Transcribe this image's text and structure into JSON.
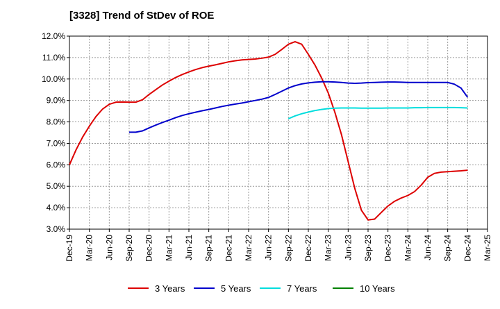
{
  "chart_data": {
    "type": "line",
    "title": "[3328]  Trend of StDev of ROE",
    "xlabel": "",
    "ylabel": "",
    "ylim": [
      3.0,
      12.0
    ],
    "y_ticks": [
      3.0,
      4.0,
      5.0,
      6.0,
      7.0,
      8.0,
      9.0,
      10.0,
      11.0,
      12.0
    ],
    "y_tick_labels": [
      "3.0%",
      "4.0%",
      "5.0%",
      "6.0%",
      "7.0%",
      "8.0%",
      "9.0%",
      "10.0%",
      "11.0%",
      "12.0%"
    ],
    "x_tick_labels": [
      "Dec-19",
      "Mar-20",
      "Jun-20",
      "Sep-20",
      "Dec-20",
      "Mar-21",
      "Jun-21",
      "Sep-21",
      "Dec-21",
      "Mar-22",
      "Jun-22",
      "Sep-22",
      "Dec-22",
      "Mar-23",
      "Jun-23",
      "Sep-23",
      "Dec-23",
      "Mar-24",
      "Jun-24",
      "Sep-24",
      "Dec-24",
      "Mar-25"
    ],
    "grid": true,
    "legend_position": "bottom",
    "series": [
      {
        "name": "3 Years",
        "color": "#dd0000",
        "points": [
          [
            "Dec-19",
            6.0
          ],
          [
            "Jan-20",
            6.7
          ],
          [
            "Feb-20",
            7.3
          ],
          [
            "Mar-20",
            7.8
          ],
          [
            "Apr-20",
            8.25
          ],
          [
            "May-20",
            8.6
          ],
          [
            "Jun-20",
            8.82
          ],
          [
            "Jul-20",
            8.92
          ],
          [
            "Aug-20",
            8.93
          ],
          [
            "Sep-20",
            8.92
          ],
          [
            "Oct-20",
            8.92
          ],
          [
            "Nov-20",
            9.03
          ],
          [
            "Dec-20",
            9.28
          ],
          [
            "Jan-21",
            9.5
          ],
          [
            "Feb-21",
            9.72
          ],
          [
            "Mar-21",
            9.9
          ],
          [
            "Apr-21",
            10.07
          ],
          [
            "May-21",
            10.21
          ],
          [
            "Jun-21",
            10.33
          ],
          [
            "Jul-21",
            10.44
          ],
          [
            "Aug-21",
            10.53
          ],
          [
            "Sep-21",
            10.6
          ],
          [
            "Oct-21",
            10.66
          ],
          [
            "Nov-21",
            10.73
          ],
          [
            "Dec-21",
            10.8
          ],
          [
            "Jan-22",
            10.85
          ],
          [
            "Feb-22",
            10.89
          ],
          [
            "Mar-22",
            10.91
          ],
          [
            "Apr-22",
            10.93
          ],
          [
            "May-22",
            10.97
          ],
          [
            "Jun-22",
            11.02
          ],
          [
            "Jul-22",
            11.15
          ],
          [
            "Aug-22",
            11.38
          ],
          [
            "Sep-22",
            11.62
          ],
          [
            "Oct-22",
            11.74
          ],
          [
            "Nov-22",
            11.62
          ],
          [
            "Dec-22",
            11.15
          ],
          [
            "Jan-23",
            10.65
          ],
          [
            "Feb-23",
            10.05
          ],
          [
            "Mar-23",
            9.35
          ],
          [
            "Apr-23",
            8.45
          ],
          [
            "May-23",
            7.4
          ],
          [
            "Jun-23",
            6.15
          ],
          [
            "Jul-23",
            4.9
          ],
          [
            "Aug-23",
            3.88
          ],
          [
            "Sep-23",
            3.43
          ],
          [
            "Oct-23",
            3.47
          ],
          [
            "Nov-23",
            3.78
          ],
          [
            "Dec-23",
            4.08
          ],
          [
            "Jan-24",
            4.3
          ],
          [
            "Feb-24",
            4.45
          ],
          [
            "Mar-24",
            4.57
          ],
          [
            "Apr-24",
            4.75
          ],
          [
            "May-24",
            5.05
          ],
          [
            "Jun-24",
            5.42
          ],
          [
            "Jul-24",
            5.6
          ],
          [
            "Aug-24",
            5.66
          ],
          [
            "Sep-24",
            5.68
          ],
          [
            "Oct-24",
            5.7
          ],
          [
            "Nov-24",
            5.72
          ],
          [
            "Dec-24",
            5.75
          ]
        ]
      },
      {
        "name": "5 Years",
        "color": "#0000cc",
        "points": [
          [
            "Sep-20",
            7.52
          ],
          [
            "Oct-20",
            7.52
          ],
          [
            "Nov-20",
            7.58
          ],
          [
            "Dec-20",
            7.72
          ],
          [
            "Jan-21",
            7.85
          ],
          [
            "Feb-21",
            7.97
          ],
          [
            "Mar-21",
            8.08
          ],
          [
            "Apr-21",
            8.2
          ],
          [
            "May-21",
            8.3
          ],
          [
            "Jun-21",
            8.38
          ],
          [
            "Jul-21",
            8.45
          ],
          [
            "Aug-21",
            8.52
          ],
          [
            "Sep-21",
            8.58
          ],
          [
            "Oct-21",
            8.65
          ],
          [
            "Nov-21",
            8.72
          ],
          [
            "Dec-21",
            8.78
          ],
          [
            "Jan-22",
            8.83
          ],
          [
            "Feb-22",
            8.88
          ],
          [
            "Mar-22",
            8.94
          ],
          [
            "Apr-22",
            9.0
          ],
          [
            "May-22",
            9.06
          ],
          [
            "Jun-22",
            9.14
          ],
          [
            "Jul-22",
            9.28
          ],
          [
            "Aug-22",
            9.43
          ],
          [
            "Sep-22",
            9.58
          ],
          [
            "Oct-22",
            9.69
          ],
          [
            "Nov-22",
            9.77
          ],
          [
            "Dec-22",
            9.82
          ],
          [
            "Jan-23",
            9.85
          ],
          [
            "Feb-23",
            9.87
          ],
          [
            "Mar-23",
            9.87
          ],
          [
            "Apr-23",
            9.86
          ],
          [
            "May-23",
            9.84
          ],
          [
            "Jun-23",
            9.81
          ],
          [
            "Jul-23",
            9.8
          ],
          [
            "Aug-23",
            9.81
          ],
          [
            "Sep-23",
            9.83
          ],
          [
            "Oct-23",
            9.84
          ],
          [
            "Nov-23",
            9.85
          ],
          [
            "Dec-23",
            9.86
          ],
          [
            "Jan-24",
            9.86
          ],
          [
            "Feb-24",
            9.85
          ],
          [
            "Mar-24",
            9.84
          ],
          [
            "Apr-24",
            9.84
          ],
          [
            "May-24",
            9.84
          ],
          [
            "Jun-24",
            9.84
          ],
          [
            "Jul-24",
            9.84
          ],
          [
            "Aug-24",
            9.84
          ],
          [
            "Sep-24",
            9.84
          ],
          [
            "Oct-24",
            9.76
          ],
          [
            "Nov-24",
            9.58
          ],
          [
            "Dec-24",
            9.15
          ]
        ]
      },
      {
        "name": "7 Years",
        "color": "#00dddd",
        "points": [
          [
            "Sep-22",
            8.15
          ],
          [
            "Oct-22",
            8.28
          ],
          [
            "Nov-22",
            8.38
          ],
          [
            "Dec-22",
            8.46
          ],
          [
            "Jan-23",
            8.53
          ],
          [
            "Feb-23",
            8.58
          ],
          [
            "Mar-23",
            8.62
          ],
          [
            "Apr-23",
            8.64
          ],
          [
            "May-23",
            8.65
          ],
          [
            "Jun-23",
            8.65
          ],
          [
            "Jul-23",
            8.65
          ],
          [
            "Aug-23",
            8.64
          ],
          [
            "Sep-23",
            8.64
          ],
          [
            "Oct-23",
            8.64
          ],
          [
            "Nov-23",
            8.64
          ],
          [
            "Dec-23",
            8.65
          ],
          [
            "Jan-24",
            8.65
          ],
          [
            "Feb-24",
            8.65
          ],
          [
            "Mar-24",
            8.65
          ],
          [
            "Apr-24",
            8.66
          ],
          [
            "May-24",
            8.66
          ],
          [
            "Jun-24",
            8.67
          ],
          [
            "Jul-24",
            8.67
          ],
          [
            "Aug-24",
            8.67
          ],
          [
            "Sep-24",
            8.67
          ],
          [
            "Oct-24",
            8.67
          ],
          [
            "Nov-24",
            8.66
          ],
          [
            "Dec-24",
            8.65
          ]
        ]
      },
      {
        "name": "10 Years",
        "color": "#008000",
        "points": []
      }
    ]
  }
}
